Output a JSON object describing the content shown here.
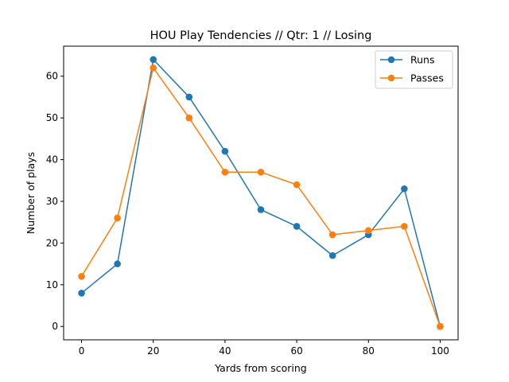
{
  "chart_data": {
    "type": "line",
    "title": "HOU Play Tendencies // Qtr: 1 // Losing",
    "xlabel": "Yards from scoring",
    "ylabel": "Number of plays",
    "x": [
      0,
      10,
      20,
      30,
      40,
      50,
      60,
      70,
      80,
      90,
      100
    ],
    "xlim": [
      -5,
      105
    ],
    "ylim": [
      -3.2,
      67.2
    ],
    "xticks": [
      0,
      20,
      40,
      60,
      80,
      100
    ],
    "yticks": [
      0,
      10,
      20,
      30,
      40,
      50,
      60
    ],
    "grid": false,
    "legend_position": "top-right",
    "series": [
      {
        "name": "Runs",
        "color": "#1f77b4",
        "values": [
          8,
          15,
          64,
          55,
          42,
          28,
          24,
          17,
          22,
          33,
          0
        ]
      },
      {
        "name": "Passes",
        "color": "#ff7f0e",
        "values": [
          12,
          26,
          62,
          50,
          37,
          37,
          34,
          22,
          23,
          24,
          0
        ]
      }
    ]
  }
}
